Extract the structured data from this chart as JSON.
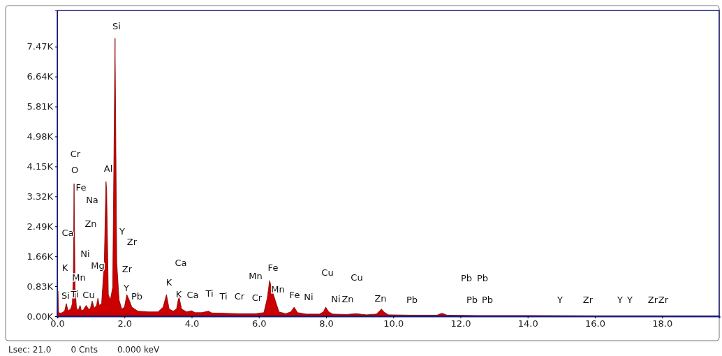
{
  "chart_data": {
    "type": "area",
    "x": [
      0,
      0.02,
      0.04,
      0.08,
      0.15,
      0.22,
      0.27,
      0.32,
      0.4,
      0.45,
      0.48,
      0.5,
      0.53,
      0.57,
      0.62,
      0.68,
      0.72,
      0.78,
      0.86,
      0.93,
      0.98,
      1.04,
      1.1,
      1.17,
      1.21,
      1.25,
      1.32,
      1.4,
      1.45,
      1.47,
      1.52,
      1.58,
      1.65,
      1.72,
      1.77,
      1.84,
      1.92,
      2.0,
      2.07,
      2.14,
      2.22,
      2.4,
      2.7,
      3.0,
      3.15,
      3.25,
      3.33,
      3.45,
      3.55,
      3.62,
      3.7,
      3.85,
      4.0,
      4.1,
      4.3,
      4.5,
      4.6,
      5.0,
      5.4,
      5.9,
      6.15,
      6.25,
      6.32,
      6.4,
      6.5,
      6.6,
      6.8,
      6.95,
      7.05,
      7.15,
      7.4,
      7.8,
      7.92,
      7.99,
      8.08,
      8.2,
      8.6,
      8.9,
      9.2,
      9.5,
      9.6,
      9.65,
      9.72,
      9.85,
      10.5,
      11.3,
      11.45,
      11.6,
      12.5,
      14,
      16,
      18,
      19.7
    ],
    "values": [
      0.05,
      0.7,
      0.12,
      0.08,
      0.1,
      0.15,
      0.35,
      0.15,
      0.2,
      0.35,
      1.2,
      3.67,
      0.8,
      0.25,
      0.15,
      0.3,
      0.15,
      0.18,
      0.3,
      0.2,
      0.2,
      0.42,
      0.22,
      0.3,
      0.5,
      0.3,
      0.35,
      1.5,
      3.73,
      3.5,
      0.6,
      0.45,
      0.8,
      7.7,
      1.5,
      0.45,
      0.2,
      0.25,
      0.6,
      0.45,
      0.25,
      0.14,
      0.12,
      0.12,
      0.25,
      0.6,
      0.2,
      0.14,
      0.2,
      0.55,
      0.2,
      0.12,
      0.15,
      0.1,
      0.1,
      0.14,
      0.09,
      0.08,
      0.07,
      0.07,
      0.1,
      0.5,
      0.99,
      0.7,
      0.4,
      0.12,
      0.07,
      0.12,
      0.25,
      0.1,
      0.06,
      0.06,
      0.12,
      0.25,
      0.12,
      0.06,
      0.05,
      0.07,
      0.04,
      0.06,
      0.15,
      0.2,
      0.12,
      0.04,
      0.03,
      0.03,
      0.08,
      0.03,
      0.02,
      0.02,
      0.01,
      0.01,
      0
    ],
    "color": "#cc0000",
    "xlim": [
      0,
      19.7
    ],
    "xticks": [
      {
        "value": 0,
        "label": "0.0"
      },
      {
        "value": 2,
        "label": "2.0"
      },
      {
        "value": 4,
        "label": "4.0"
      },
      {
        "value": 6,
        "label": "6.0"
      },
      {
        "value": 8,
        "label": "8.0"
      },
      {
        "value": 10,
        "label": "10.0"
      },
      {
        "value": 12,
        "label": "12.0"
      },
      {
        "value": 14,
        "label": "14.0"
      },
      {
        "value": 16,
        "label": "16.0"
      },
      {
        "value": 18,
        "label": "18.0"
      }
    ],
    "ylim": [
      0,
      8.47
    ],
    "yticks": [
      {
        "value": 0,
        "label": "0.00K"
      },
      {
        "value": 0.83,
        "label": "0.83K"
      },
      {
        "value": 1.66,
        "label": "1.66K"
      },
      {
        "value": 2.49,
        "label": "2.49K"
      },
      {
        "value": 3.32,
        "label": "3.32K"
      },
      {
        "value": 4.15,
        "label": "4.15K"
      },
      {
        "value": 4.98,
        "label": "4.98K"
      },
      {
        "value": 5.81,
        "label": "5.81K"
      },
      {
        "value": 6.64,
        "label": "6.64K"
      },
      {
        "value": 7.47,
        "label": "7.47K"
      }
    ],
    "grid": false,
    "annotations": [
      "Si",
      "Cr",
      "O",
      "Al",
      "Fe",
      "Na",
      "Zn",
      "Ca",
      "Y",
      "Zr",
      "Ni",
      "Mg",
      "K",
      "Mn",
      "Zr",
      "Ca",
      "K",
      "Si",
      "Ti",
      "Cu",
      "Y",
      "Pb",
      "K",
      "Ca",
      "Ti",
      "Ti",
      "Cr",
      "Cr",
      "Mn",
      "Fe",
      "Mn",
      "Fe",
      "Ni",
      "Cu",
      "Ni",
      "Zn",
      "Cu",
      "Zn",
      "Pb",
      "Pb",
      "Pb",
      "Pb",
      "Pb",
      "Y",
      "Zr",
      "Y",
      "Y",
      "Zr",
      "Zr",
      "Lsec: 21.0",
      "0 Cnts",
      "0.000 keV"
    ]
  }
}
